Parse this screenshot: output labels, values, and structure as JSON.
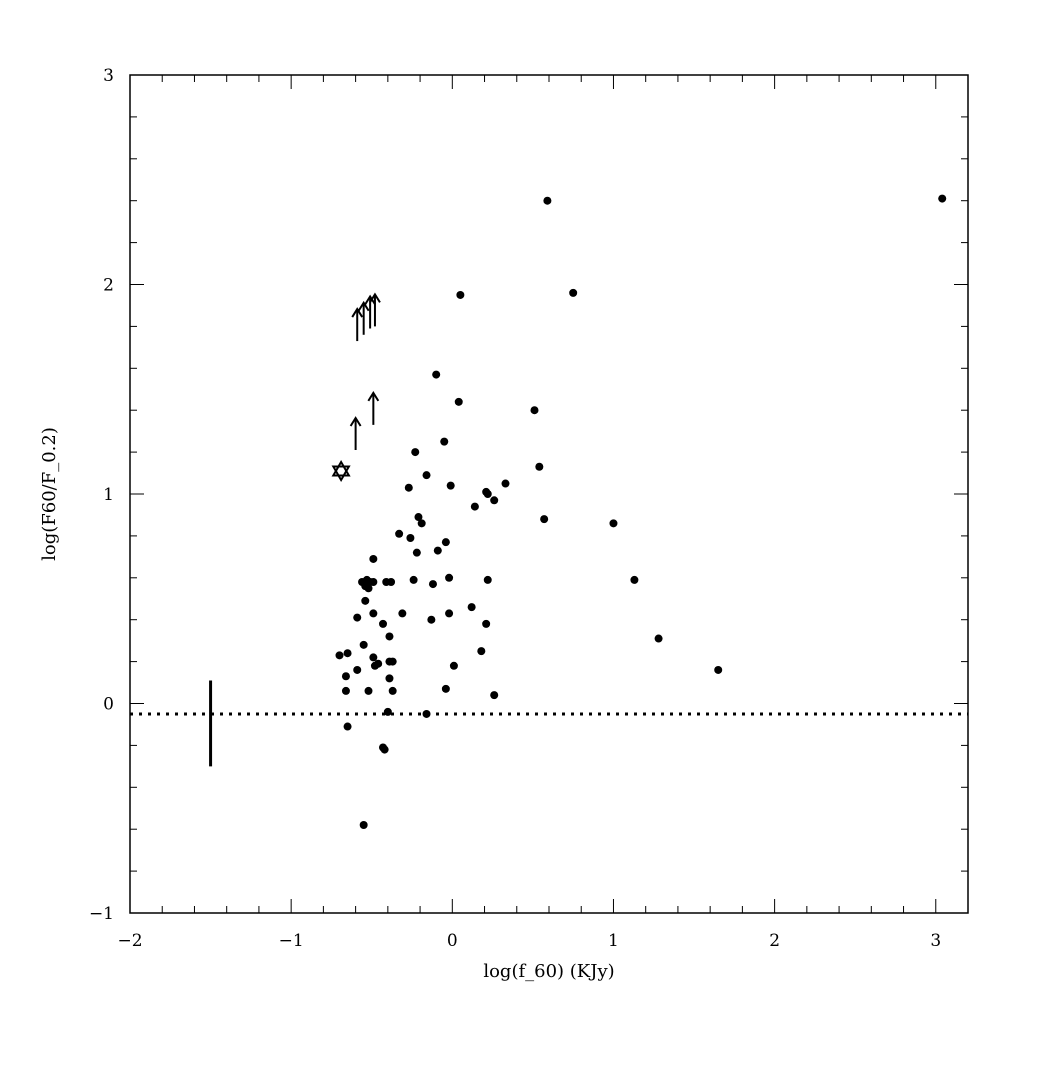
{
  "chart_data": {
    "type": "scatter",
    "xlabel": "log(f_60)  (KJy)",
    "ylabel": "log(F60/F_0.2)",
    "xlim": [
      -2,
      3.2
    ],
    "ylim": [
      -1,
      3
    ],
    "x_ticks": [
      -2,
      -1,
      0,
      1,
      2,
      3
    ],
    "x_tick_labels": [
      "−2",
      "−1",
      "0",
      "1",
      "2",
      "3"
    ],
    "y_ticks": [
      -1,
      0,
      1,
      2,
      3
    ],
    "y_tick_labels": [
      "−1",
      "0",
      "1",
      "2",
      "3"
    ],
    "grid": false,
    "points": [
      {
        "x": 0.59,
        "y": 2.4
      },
      {
        "x": 3.04,
        "y": 2.41
      },
      {
        "x": 0.05,
        "y": 1.95
      },
      {
        "x": 0.75,
        "y": 1.96
      },
      {
        "x": -0.1,
        "y": 1.57
      },
      {
        "x": 0.04,
        "y": 1.44
      },
      {
        "x": 0.51,
        "y": 1.4
      },
      {
        "x": -0.05,
        "y": 1.25
      },
      {
        "x": -0.23,
        "y": 1.2
      },
      {
        "x": 0.54,
        "y": 1.13
      },
      {
        "x": -0.16,
        "y": 1.09
      },
      {
        "x": 0.33,
        "y": 1.05
      },
      {
        "x": -0.01,
        "y": 1.04
      },
      {
        "x": -0.27,
        "y": 1.03
      },
      {
        "x": 0.21,
        "y": 1.01
      },
      {
        "x": 0.22,
        "y": 1.0
      },
      {
        "x": 0.26,
        "y": 0.97
      },
      {
        "x": 0.14,
        "y": 0.94
      },
      {
        "x": -0.21,
        "y": 0.89
      },
      {
        "x": 0.57,
        "y": 0.88
      },
      {
        "x": -0.19,
        "y": 0.86
      },
      {
        "x": 1.0,
        "y": 0.86
      },
      {
        "x": -0.33,
        "y": 0.81
      },
      {
        "x": -0.26,
        "y": 0.79
      },
      {
        "x": -0.04,
        "y": 0.77
      },
      {
        "x": -0.09,
        "y": 0.73
      },
      {
        "x": -0.22,
        "y": 0.72
      },
      {
        "x": -0.49,
        "y": 0.69
      },
      {
        "x": -0.02,
        "y": 0.6
      },
      {
        "x": 1.13,
        "y": 0.59
      },
      {
        "x": -0.24,
        "y": 0.59
      },
      {
        "x": 0.22,
        "y": 0.59
      },
      {
        "x": -0.53,
        "y": 0.59
      },
      {
        "x": -0.49,
        "y": 0.58
      },
      {
        "x": -0.56,
        "y": 0.58
      },
      {
        "x": -0.51,
        "y": 0.58
      },
      {
        "x": -0.41,
        "y": 0.58
      },
      {
        "x": -0.38,
        "y": 0.58
      },
      {
        "x": -0.54,
        "y": 0.56
      },
      {
        "x": -0.12,
        "y": 0.57
      },
      {
        "x": -0.52,
        "y": 0.55
      },
      {
        "x": -0.54,
        "y": 0.49
      },
      {
        "x": 0.12,
        "y": 0.46
      },
      {
        "x": -0.49,
        "y": 0.43
      },
      {
        "x": -0.31,
        "y": 0.43
      },
      {
        "x": -0.02,
        "y": 0.43
      },
      {
        "x": -0.59,
        "y": 0.41
      },
      {
        "x": -0.13,
        "y": 0.4
      },
      {
        "x": -0.43,
        "y": 0.38
      },
      {
        "x": 0.21,
        "y": 0.38
      },
      {
        "x": -0.39,
        "y": 0.32
      },
      {
        "x": 1.28,
        "y": 0.31
      },
      {
        "x": -0.55,
        "y": 0.28
      },
      {
        "x": 0.18,
        "y": 0.25
      },
      {
        "x": -0.65,
        "y": 0.24
      },
      {
        "x": -0.7,
        "y": 0.23
      },
      {
        "x": -0.49,
        "y": 0.22
      },
      {
        "x": -0.37,
        "y": 0.2
      },
      {
        "x": -0.39,
        "y": 0.2
      },
      {
        "x": 0.01,
        "y": 0.18
      },
      {
        "x": -0.48,
        "y": 0.18
      },
      {
        "x": -0.46,
        "y": 0.19
      },
      {
        "x": -0.59,
        "y": 0.16
      },
      {
        "x": 1.65,
        "y": 0.16
      },
      {
        "x": -0.66,
        "y": 0.13
      },
      {
        "x": -0.39,
        "y": 0.12
      },
      {
        "x": -0.66,
        "y": 0.06
      },
      {
        "x": -0.52,
        "y": 0.06
      },
      {
        "x": -0.04,
        "y": 0.07
      },
      {
        "x": -0.37,
        "y": 0.06
      },
      {
        "x": 0.26,
        "y": 0.04
      },
      {
        "x": -0.4,
        "y": -0.04
      },
      {
        "x": -0.16,
        "y": -0.05
      },
      {
        "x": -0.65,
        "y": -0.11
      },
      {
        "x": -0.43,
        "y": -0.21
      },
      {
        "x": -0.42,
        "y": -0.22
      },
      {
        "x": -0.55,
        "y": -0.58
      }
    ],
    "lower_limits": [
      {
        "x": -0.59,
        "y": 1.73
      },
      {
        "x": -0.55,
        "y": 1.76
      },
      {
        "x": -0.51,
        "y": 1.79
      },
      {
        "x": -0.48,
        "y": 1.8
      },
      {
        "x": -0.6,
        "y": 1.21
      },
      {
        "x": -0.49,
        "y": 1.33
      }
    ],
    "star_symbol": {
      "x": -0.69,
      "y": 1.11
    },
    "reference_line": {
      "y": -0.05,
      "style": "dotted"
    },
    "error_bar": {
      "x": -1.5,
      "y_low": -0.3,
      "y_high": 0.11
    }
  }
}
